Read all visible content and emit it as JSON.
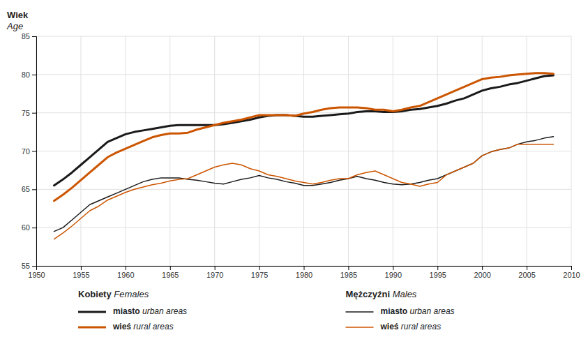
{
  "chart_data": {
    "type": "line",
    "ylabel": [
      "Wiek",
      "Age"
    ],
    "x": [
      1952,
      1953,
      1954,
      1955,
      1956,
      1957,
      1958,
      1959,
      1960,
      1961,
      1962,
      1963,
      1964,
      1965,
      1966,
      1967,
      1968,
      1969,
      1970,
      1971,
      1972,
      1973,
      1974,
      1975,
      1976,
      1977,
      1978,
      1979,
      1980,
      1981,
      1982,
      1983,
      1984,
      1985,
      1986,
      1987,
      1988,
      1989,
      1990,
      1991,
      1992,
      1993,
      1994,
      1995,
      1996,
      1997,
      1998,
      1999,
      2000,
      2001,
      2002,
      2003,
      2004,
      2005,
      2006,
      2007,
      2008
    ],
    "series": [
      {
        "name": "miasto urban areas",
        "group": "Kobiety Females",
        "color": "#1a1a1a",
        "line_style": "thick",
        "values": [
          65.5,
          66.3,
          67.2,
          68.2,
          69.2,
          70.2,
          71.2,
          71.7,
          72.2,
          72.5,
          72.7,
          72.9,
          73.1,
          73.3,
          73.4,
          73.4,
          73.4,
          73.4,
          73.4,
          73.5,
          73.7,
          73.9,
          74.1,
          74.4,
          74.6,
          74.7,
          74.7,
          74.6,
          74.5,
          74.5,
          74.6,
          74.7,
          74.8,
          74.9,
          75.1,
          75.2,
          75.2,
          75.1,
          75.1,
          75.2,
          75.4,
          75.5,
          75.7,
          75.9,
          76.2,
          76.6,
          76.9,
          77.4,
          77.9,
          78.2,
          78.4,
          78.7,
          78.9,
          79.2,
          79.5,
          79.8,
          79.9
        ]
      },
      {
        "name": "wieś rural areas",
        "group": "Kobiety Females",
        "color": "#CC5500",
        "line_style": "thick",
        "values": [
          63.5,
          64.3,
          65.2,
          66.2,
          67.2,
          68.2,
          69.2,
          69.8,
          70.3,
          70.8,
          71.3,
          71.8,
          72.1,
          72.3,
          72.3,
          72.4,
          72.8,
          73.1,
          73.4,
          73.7,
          73.9,
          74.1,
          74.4,
          74.7,
          74.7,
          74.7,
          74.7,
          74.6,
          74.9,
          75.1,
          75.4,
          75.6,
          75.7,
          75.7,
          75.7,
          75.6,
          75.4,
          75.4,
          75.2,
          75.4,
          75.7,
          75.9,
          76.4,
          76.9,
          77.4,
          77.9,
          78.4,
          78.9,
          79.4,
          79.6,
          79.7,
          79.9,
          80.0,
          80.1,
          80.2,
          80.2,
          80.1
        ]
      },
      {
        "name": "miasto urban areas",
        "group": "Mężczyźni Males",
        "color": "#1a1a1a",
        "line_style": "thin",
        "values": [
          59.5,
          60.0,
          61.0,
          62.0,
          63.0,
          63.5,
          64.0,
          64.5,
          65.0,
          65.5,
          66.0,
          66.3,
          66.5,
          66.5,
          66.5,
          66.3,
          66.2,
          66.0,
          65.8,
          65.7,
          66.0,
          66.3,
          66.5,
          66.8,
          66.5,
          66.3,
          66.0,
          65.8,
          65.5,
          65.5,
          65.7,
          65.9,
          66.2,
          66.4,
          66.7,
          66.4,
          66.2,
          65.9,
          65.7,
          65.6,
          65.7,
          65.9,
          66.2,
          66.4,
          66.9,
          67.4,
          67.9,
          68.4,
          69.4,
          69.9,
          70.2,
          70.4,
          70.9,
          71.2,
          71.4,
          71.7,
          71.9
        ]
      },
      {
        "name": "wieś rural areas",
        "group": "Mężczyźni Males",
        "color": "#CC5500",
        "line_style": "thin",
        "values": [
          58.5,
          59.3,
          60.2,
          61.2,
          62.2,
          62.8,
          63.6,
          64.1,
          64.6,
          65.0,
          65.3,
          65.6,
          65.8,
          66.1,
          66.3,
          66.4,
          66.9,
          67.4,
          67.9,
          68.2,
          68.4,
          68.2,
          67.7,
          67.4,
          66.9,
          66.7,
          66.4,
          66.1,
          65.9,
          65.7,
          65.9,
          66.2,
          66.4,
          66.4,
          66.9,
          67.2,
          67.4,
          66.9,
          66.4,
          65.9,
          65.7,
          65.4,
          65.7,
          65.9,
          66.9,
          67.4,
          67.9,
          68.4,
          69.4,
          69.9,
          70.2,
          70.4,
          70.9,
          70.9,
          70.9,
          70.9,
          70.9
        ]
      }
    ],
    "xlim": [
      1950,
      2010
    ],
    "xticks": [
      1950,
      1955,
      1960,
      1965,
      1970,
      1975,
      1980,
      1985,
      1990,
      1995,
      2000,
      2005,
      2010
    ],
    "ylim": [
      55,
      85
    ],
    "yticks": [
      55,
      60,
      65,
      70,
      75,
      80,
      85
    ],
    "grid": true
  }
}
